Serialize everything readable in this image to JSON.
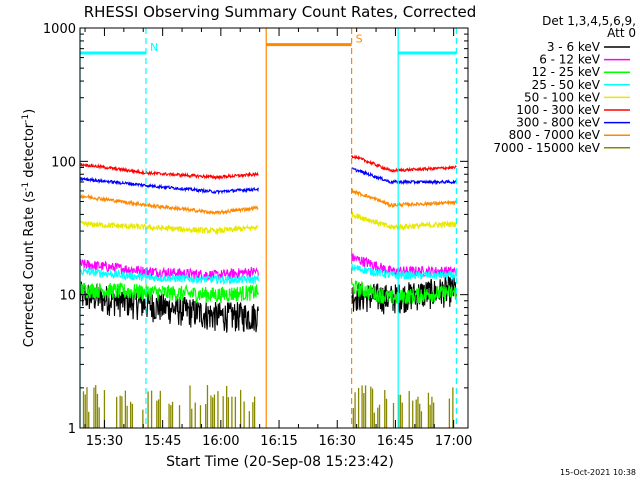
{
  "chart_data": {
    "type": "line",
    "title": "RHESSI Observing Summary Count Rates, Corrected",
    "xlabel": "Start Time (20-Sep-08 15:23:42)",
    "ylabel_main": "Corrected Count Rate (s",
    "ylabel_sup1": "-1",
    "ylabel_mid": " detector",
    "ylabel_sup2": "-1",
    "ylabel_end": ")",
    "y_scale": "log",
    "ylim": [
      1,
      1000
    ],
    "xlim": [
      "15:23:42",
      "17:03:42"
    ],
    "x_ticks": [
      {
        "label": "15:30",
        "min": 6.3
      },
      {
        "label": "15:45",
        "min": 21.3
      },
      {
        "label": "16:00",
        "min": 36.3
      },
      {
        "label": "16:15",
        "min": 51.3
      },
      {
        "label": "16:30",
        "min": 66.3
      },
      {
        "label": "16:45",
        "min": 81.3
      },
      {
        "label": "17:00",
        "min": 96.3
      }
    ],
    "y_ticks": [
      {
        "label": "1",
        "v": 1
      },
      {
        "label": "10",
        "v": 10
      },
      {
        "label": "100",
        "v": 100
      },
      {
        "label": "1000",
        "v": 1000
      }
    ],
    "legend_header": [
      "Det 1,3,4,5,6,9,",
      "Att 0"
    ],
    "legend_placement": "right",
    "series": [
      {
        "name": "3 - 6 keV",
        "color": "#000000",
        "segments": [
          [
            [
              0,
              10
            ],
            [
              17,
              8.5
            ],
            [
              35,
              7
            ],
            [
              46,
              7
            ]
          ],
          [
            [
              70,
              10
            ],
            [
              80,
              9.5
            ],
            [
              97,
              11
            ]
          ]
        ],
        "noise": 0.26
      },
      {
        "name": "6 - 12 keV",
        "color": "#ff00ff",
        "segments": [
          [
            [
              0,
              17
            ],
            [
              17,
              15
            ],
            [
              35,
              14
            ],
            [
              46,
              15
            ]
          ],
          [
            [
              70,
              19
            ],
            [
              80,
              15
            ],
            [
              97,
              15
            ]
          ]
        ],
        "noise": 0.09
      },
      {
        "name": "12 - 25 keV",
        "color": "#00ff00",
        "segments": [
          [
            [
              0,
              11
            ],
            [
              17,
              10.5
            ],
            [
              35,
              10
            ],
            [
              46,
              10.5
            ]
          ],
          [
            [
              70,
              11.5
            ],
            [
              80,
              9.5
            ],
            [
              97,
              10.5
            ]
          ]
        ],
        "noise": 0.14
      },
      {
        "name": "25 - 50 keV",
        "color": "#00ffff",
        "segments": [
          [
            [
              0,
              15
            ],
            [
              17,
              13.5
            ],
            [
              35,
              13
            ],
            [
              46,
              13
            ]
          ],
          [
            [
              70,
              16
            ],
            [
              80,
              14
            ],
            [
              97,
              14
            ]
          ]
        ],
        "noise": 0.07
      },
      {
        "name": "50 - 100 keV",
        "color": "#e8e800",
        "segments": [
          [
            [
              0,
              34
            ],
            [
              17,
              32
            ],
            [
              35,
              30
            ],
            [
              46,
              32
            ]
          ],
          [
            [
              70,
              40
            ],
            [
              80,
              32
            ],
            [
              97,
              34
            ]
          ]
        ],
        "noise": 0.05
      },
      {
        "name": "100 - 300 keV",
        "color": "#ff0000",
        "segments": [
          [
            [
              0,
              95
            ],
            [
              17,
              82
            ],
            [
              35,
              76
            ],
            [
              46,
              80
            ]
          ],
          [
            [
              70,
              110
            ],
            [
              80,
              85
            ],
            [
              97,
              90
            ]
          ]
        ],
        "noise": 0.025
      },
      {
        "name": "300 - 800 keV",
        "color": "#0000ff",
        "segments": [
          [
            [
              0,
              74
            ],
            [
              17,
              66
            ],
            [
              35,
              59
            ],
            [
              46,
              62
            ]
          ],
          [
            [
              70,
              88
            ],
            [
              80,
              70
            ],
            [
              97,
              70
            ]
          ]
        ],
        "noise": 0.025
      },
      {
        "name": "800 - 7000 keV",
        "color": "#ff8800",
        "segments": [
          [
            [
              0,
              55
            ],
            [
              17,
              47
            ],
            [
              35,
              41
            ],
            [
              46,
              45
            ]
          ],
          [
            [
              70,
              60
            ],
            [
              80,
              47
            ],
            [
              97,
              49
            ]
          ]
        ],
        "noise": 0.03
      },
      {
        "name": "7000 - 15000 keV",
        "color": "#888800",
        "segments": [
          [
            [
              0,
              1
            ],
            [
              46,
              1
            ]
          ],
          [
            [
              70,
              1
            ],
            [
              97,
              1
            ]
          ]
        ],
        "noise": 0
      }
    ],
    "annotations": [
      {
        "label": "N",
        "start": 0,
        "end": 17,
        "level": 650,
        "color": "#00ffff",
        "edges": [
          "solid",
          "dashed"
        ]
      },
      {
        "label": "S",
        "start": 48,
        "end": 70,
        "level": 750,
        "color": "#ff8800",
        "edges": [
          "solid",
          "dashed"
        ]
      },
      {
        "label": "",
        "start": 82,
        "end": 97,
        "level": 650,
        "color": "#00ffff",
        "edges": [
          "solid",
          "dashed"
        ]
      }
    ],
    "timestamp": "15-Oct-2021 10:38"
  }
}
